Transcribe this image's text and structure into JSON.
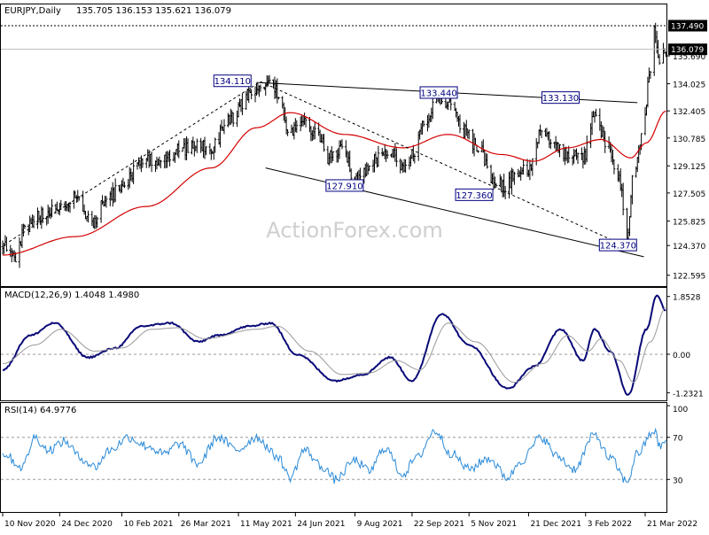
{
  "header": {
    "symbol": "EURJPY,Daily",
    "ohlc": "135.705 136.153 135.621 136.079"
  },
  "watermark": "ActionForex.com",
  "colors": {
    "price": "#000000",
    "ma": "#d40000",
    "macd": "#0a0a78",
    "signal": "#999999",
    "rsi": "#2a8ad8",
    "trend_line": "#000000",
    "label_box": "#000080"
  },
  "chart_data": [
    {
      "type": "candlestick",
      "panel": "price",
      "ylim": [
        122.0,
        138.6
      ],
      "y_ticks": [
        "122.595",
        "124.370",
        "125.825",
        "127.505",
        "129.125",
        "130.785",
        "132.405",
        "134.025",
        "135.690"
      ],
      "current_price": "136.079",
      "recent_high": "137.490",
      "annotations": [
        "134.110",
        "133.440",
        "133.130",
        "127.910",
        "127.360",
        "124.370"
      ],
      "close_series": {
        "name": "close",
        "anchors": [
          {
            "date": "2020-11-10",
            "value": 124.3
          },
          {
            "date": "2020-11-20",
            "value": 123.5
          },
          {
            "date": "2020-11-27",
            "value": 125.5
          },
          {
            "date": "2020-12-10",
            "value": 126.2
          },
          {
            "date": "2020-12-24",
            "value": 126.5
          },
          {
            "date": "2021-01-06",
            "value": 127.2
          },
          {
            "date": "2021-01-18",
            "value": 125.8
          },
          {
            "date": "2021-01-28",
            "value": 127.0
          },
          {
            "date": "2021-02-10",
            "value": 127.8
          },
          {
            "date": "2021-02-25",
            "value": 129.5
          },
          {
            "date": "2021-03-10",
            "value": 129.4
          },
          {
            "date": "2021-03-26",
            "value": 130.0
          },
          {
            "date": "2021-04-05",
            "value": 130.3
          },
          {
            "date": "2021-04-20",
            "value": 130.2
          },
          {
            "date": "2021-05-05",
            "value": 132.0
          },
          {
            "date": "2021-05-20",
            "value": 133.3
          },
          {
            "date": "2021-06-01",
            "value": 134.0
          },
          {
            "date": "2021-06-10",
            "value": 133.6
          },
          {
            "date": "2021-06-20",
            "value": 131.0
          },
          {
            "date": "2021-06-28",
            "value": 132.0
          },
          {
            "date": "2021-07-10",
            "value": 131.2
          },
          {
            "date": "2021-07-20",
            "value": 129.6
          },
          {
            "date": "2021-07-30",
            "value": 130.3
          },
          {
            "date": "2021-08-09",
            "value": 128.2
          },
          {
            "date": "2021-08-25",
            "value": 129.5
          },
          {
            "date": "2021-09-05",
            "value": 130.2
          },
          {
            "date": "2021-09-15",
            "value": 129.0
          },
          {
            "date": "2021-09-22",
            "value": 129.8
          },
          {
            "date": "2021-10-01",
            "value": 131.5
          },
          {
            "date": "2021-10-12",
            "value": 133.2
          },
          {
            "date": "2021-10-20",
            "value": 132.7
          },
          {
            "date": "2021-11-01",
            "value": 131.2
          },
          {
            "date": "2021-11-12",
            "value": 130.2
          },
          {
            "date": "2021-11-24",
            "value": 128.4
          },
          {
            "date": "2021-12-03",
            "value": 127.8
          },
          {
            "date": "2021-12-12",
            "value": 128.8
          },
          {
            "date": "2021-12-21",
            "value": 129.0
          },
          {
            "date": "2021-12-31",
            "value": 131.3
          },
          {
            "date": "2022-01-10",
            "value": 130.6
          },
          {
            "date": "2022-01-20",
            "value": 129.7
          },
          {
            "date": "2022-02-01",
            "value": 129.6
          },
          {
            "date": "2022-02-10",
            "value": 132.0
          },
          {
            "date": "2022-02-20",
            "value": 130.5
          },
          {
            "date": "2022-03-01",
            "value": 128.3
          },
          {
            "date": "2022-03-07",
            "value": 124.8
          },
          {
            "date": "2022-03-12",
            "value": 128.5
          },
          {
            "date": "2022-03-20",
            "value": 131.5
          },
          {
            "date": "2022-03-25",
            "value": 135.0
          },
          {
            "date": "2022-03-28",
            "value": 137.2
          },
          {
            "date": "2022-04-01",
            "value": 135.5
          },
          {
            "date": "2022-04-06",
            "value": 136.1
          }
        ]
      },
      "ma_series": {
        "name": "moving-average",
        "anchors": [
          {
            "date": "2020-11-10",
            "value": 123.8
          },
          {
            "date": "2021-01-05",
            "value": 124.9
          },
          {
            "date": "2021-03-01",
            "value": 126.7
          },
          {
            "date": "2021-04-20",
            "value": 129.0
          },
          {
            "date": "2021-05-25",
            "value": 131.4
          },
          {
            "date": "2021-06-20",
            "value": 132.3
          },
          {
            "date": "2021-08-01",
            "value": 131.0
          },
          {
            "date": "2021-09-15",
            "value": 130.2
          },
          {
            "date": "2021-10-20",
            "value": 131.0
          },
          {
            "date": "2021-11-30",
            "value": 129.8
          },
          {
            "date": "2021-12-25",
            "value": 129.4
          },
          {
            "date": "2022-01-20",
            "value": 130.2
          },
          {
            "date": "2022-02-15",
            "value": 130.7
          },
          {
            "date": "2022-03-10",
            "value": 129.6
          },
          {
            "date": "2022-03-22",
            "value": 130.5
          },
          {
            "date": "2022-04-06",
            "value": 132.4
          }
        ]
      }
    },
    {
      "type": "line",
      "panel": "macd",
      "title": "MACD(12,26,9) 1.4048 1.4980",
      "ylim": [
        -1.45,
        2.1
      ],
      "y_ticks": [
        "1.8528",
        "0.00",
        "-1.2321"
      ],
      "series": [
        {
          "name": "macd",
          "anchors": [
            {
              "date": "2020-11-10",
              "value": -0.5
            },
            {
              "date": "2020-12-01",
              "value": 0.6
            },
            {
              "date": "2020-12-20",
              "value": 1.0
            },
            {
              "date": "2021-01-15",
              "value": -0.1
            },
            {
              "date": "2021-02-05",
              "value": 0.2
            },
            {
              "date": "2021-02-25",
              "value": 0.9
            },
            {
              "date": "2021-03-20",
              "value": 1.0
            },
            {
              "date": "2021-04-10",
              "value": 0.4
            },
            {
              "date": "2021-04-25",
              "value": 0.6
            },
            {
              "date": "2021-05-20",
              "value": 0.9
            },
            {
              "date": "2021-06-05",
              "value": 1.0
            },
            {
              "date": "2021-06-25",
              "value": 0.0
            },
            {
              "date": "2021-07-25",
              "value": -0.85
            },
            {
              "date": "2021-08-15",
              "value": -0.65
            },
            {
              "date": "2021-09-05",
              "value": -0.1
            },
            {
              "date": "2021-09-22",
              "value": -0.85
            },
            {
              "date": "2021-10-15",
              "value": 1.3
            },
            {
              "date": "2021-11-05",
              "value": 0.3
            },
            {
              "date": "2021-12-05",
              "value": -1.1
            },
            {
              "date": "2021-12-25",
              "value": -0.4
            },
            {
              "date": "2022-01-15",
              "value": 0.8
            },
            {
              "date": "2022-02-01",
              "value": -0.2
            },
            {
              "date": "2022-02-10",
              "value": 0.8
            },
            {
              "date": "2022-02-22",
              "value": 0.1
            },
            {
              "date": "2022-03-08",
              "value": -1.3
            },
            {
              "date": "2022-03-22",
              "value": 0.8
            },
            {
              "date": "2022-03-30",
              "value": 1.9
            },
            {
              "date": "2022-04-06",
              "value": 1.4
            }
          ]
        },
        {
          "name": "signal",
          "anchors": [
            {
              "date": "2020-11-10",
              "value": -0.3
            },
            {
              "date": "2020-12-05",
              "value": 0.3
            },
            {
              "date": "2020-12-25",
              "value": 0.8
            },
            {
              "date": "2021-01-20",
              "value": 0.1
            },
            {
              "date": "2021-02-10",
              "value": 0.2
            },
            {
              "date": "2021-03-05",
              "value": 0.8
            },
            {
              "date": "2021-03-25",
              "value": 0.85
            },
            {
              "date": "2021-04-15",
              "value": 0.5
            },
            {
              "date": "2021-05-25",
              "value": 0.8
            },
            {
              "date": "2021-06-10",
              "value": 0.9
            },
            {
              "date": "2021-07-05",
              "value": 0.1
            },
            {
              "date": "2021-07-30",
              "value": -0.65
            },
            {
              "date": "2021-08-20",
              "value": -0.6
            },
            {
              "date": "2021-09-10",
              "value": -0.2
            },
            {
              "date": "2021-09-28",
              "value": -0.5
            },
            {
              "date": "2021-10-20",
              "value": 1.0
            },
            {
              "date": "2021-11-10",
              "value": 0.4
            },
            {
              "date": "2021-12-10",
              "value": -0.9
            },
            {
              "date": "2022-01-01",
              "value": -0.3
            },
            {
              "date": "2022-01-20",
              "value": 0.6
            },
            {
              "date": "2022-02-05",
              "value": 0.1
            },
            {
              "date": "2022-02-15",
              "value": 0.5
            },
            {
              "date": "2022-03-01",
              "value": -0.2
            },
            {
              "date": "2022-03-12",
              "value": -0.9
            },
            {
              "date": "2022-03-25",
              "value": 0.4
            },
            {
              "date": "2022-04-06",
              "value": 1.5
            }
          ]
        }
      ]
    },
    {
      "type": "line",
      "panel": "rsi",
      "title": "RSI(14) 64.9776",
      "ylim": [
        0,
        100
      ],
      "y_ticks": [
        "100",
        "70",
        "30",
        "0"
      ],
      "series": [
        {
          "name": "rsi",
          "anchors": [
            {
              "date": "2020-11-10",
              "value": 55
            },
            {
              "date": "2020-11-25",
              "value": 42
            },
            {
              "date": "2020-12-05",
              "value": 70
            },
            {
              "date": "2020-12-15",
              "value": 58
            },
            {
              "date": "2020-12-28",
              "value": 66
            },
            {
              "date": "2021-01-10",
              "value": 50
            },
            {
              "date": "2021-01-20",
              "value": 42
            },
            {
              "date": "2021-02-01",
              "value": 58
            },
            {
              "date": "2021-02-15",
              "value": 70
            },
            {
              "date": "2021-03-01",
              "value": 62
            },
            {
              "date": "2021-03-15",
              "value": 54
            },
            {
              "date": "2021-03-26",
              "value": 64
            },
            {
              "date": "2021-04-10",
              "value": 45
            },
            {
              "date": "2021-04-25",
              "value": 70
            },
            {
              "date": "2021-05-10",
              "value": 58
            },
            {
              "date": "2021-05-25",
              "value": 70
            },
            {
              "date": "2021-06-10",
              "value": 52
            },
            {
              "date": "2021-06-20",
              "value": 32
            },
            {
              "date": "2021-07-01",
              "value": 58
            },
            {
              "date": "2021-07-15",
              "value": 42
            },
            {
              "date": "2021-07-25",
              "value": 30
            },
            {
              "date": "2021-08-09",
              "value": 48
            },
            {
              "date": "2021-08-20",
              "value": 38
            },
            {
              "date": "2021-09-01",
              "value": 60
            },
            {
              "date": "2021-09-15",
              "value": 35
            },
            {
              "date": "2021-09-25",
              "value": 50
            },
            {
              "date": "2021-10-10",
              "value": 76
            },
            {
              "date": "2021-10-22",
              "value": 55
            },
            {
              "date": "2021-11-05",
              "value": 40
            },
            {
              "date": "2021-11-20",
              "value": 50
            },
            {
              "date": "2021-12-05",
              "value": 32
            },
            {
              "date": "2021-12-15",
              "value": 48
            },
            {
              "date": "2021-12-31",
              "value": 70
            },
            {
              "date": "2022-01-12",
              "value": 52
            },
            {
              "date": "2022-01-25",
              "value": 40
            },
            {
              "date": "2022-02-10",
              "value": 72
            },
            {
              "date": "2022-02-22",
              "value": 50
            },
            {
              "date": "2022-03-07",
              "value": 28
            },
            {
              "date": "2022-03-15",
              "value": 55
            },
            {
              "date": "2022-03-28",
              "value": 76
            },
            {
              "date": "2022-04-01",
              "value": 62
            },
            {
              "date": "2022-04-06",
              "value": 65
            }
          ]
        }
      ]
    }
  ],
  "x_axis": {
    "tick_labels": [
      "10 Nov 2020",
      "24 Dec 2020",
      "10 Feb 2021",
      "26 Mar 2021",
      "11 May 2021",
      "24 Jun 2021",
      "9 Aug 2021",
      "22 Sep 2021",
      "5 Nov 2021",
      "21 Dec 2021",
      "3 Feb 2022",
      "21 Mar 2022"
    ]
  }
}
